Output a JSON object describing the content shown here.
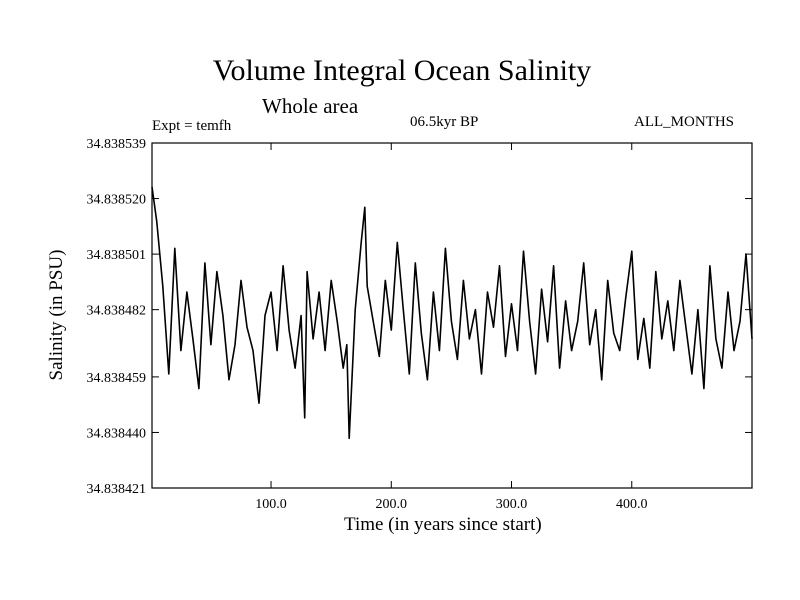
{
  "header": {
    "title": "Volume Integral Ocean Salinity",
    "subtitle": "Whole area",
    "experiment": "Expt = temfh",
    "period": "06.5kyr BP",
    "months": "ALL_MONTHS"
  },
  "colors": {
    "line": "#000000",
    "background": "#ffffff"
  },
  "chart_data": {
    "type": "line",
    "title": "Volume Integral Ocean Salinity",
    "subtitle": "Whole area",
    "xlabel": "Time (in years since start)",
    "ylabel": "Salinity (in PSU)",
    "xlim": [
      1,
      500
    ],
    "ylim": [
      34.838421,
      34.838539
    ],
    "xticks": [
      100,
      200,
      300,
      400
    ],
    "xtick_labels": [
      "100.0",
      "200.0",
      "300.0",
      "400.0"
    ],
    "yticks": [
      34.838421,
      34.83844,
      34.838459,
      34.838482,
      34.838501,
      34.83852,
      34.838539
    ],
    "ytick_labels": [
      "34.838421",
      "34.838440",
      "34.838459",
      "34.838482",
      "34.838501",
      "34.838520",
      "34.838539"
    ],
    "grid": false,
    "series": [
      {
        "name": "Salinity",
        "x": [
          1,
          5,
          10,
          15,
          20,
          25,
          30,
          35,
          40,
          45,
          50,
          55,
          60,
          65,
          70,
          75,
          80,
          85,
          90,
          95,
          100,
          105,
          110,
          115,
          120,
          125,
          128,
          130,
          135,
          140,
          145,
          150,
          155,
          160,
          163,
          165,
          170,
          175,
          178,
          180,
          185,
          190,
          195,
          200,
          205,
          210,
          215,
          220,
          225,
          230,
          235,
          240,
          245,
          250,
          255,
          260,
          265,
          270,
          275,
          280,
          285,
          290,
          295,
          300,
          305,
          310,
          315,
          320,
          325,
          330,
          335,
          340,
          345,
          350,
          355,
          360,
          365,
          370,
          375,
          380,
          385,
          390,
          395,
          400,
          405,
          410,
          415,
          420,
          425,
          430,
          435,
          440,
          445,
          450,
          455,
          460,
          465,
          470,
          475,
          480,
          485,
          490,
          495,
          500
        ],
        "values": [
          34.838524,
          34.838512,
          34.83849,
          34.83846,
          34.838503,
          34.838468,
          34.838488,
          34.838472,
          34.838455,
          34.838498,
          34.83847,
          34.838495,
          34.83848,
          34.838458,
          34.83847,
          34.838492,
          34.838476,
          34.838468,
          34.83845,
          34.83848,
          34.838488,
          34.838468,
          34.838497,
          34.838475,
          34.838462,
          34.83848,
          34.838445,
          34.838495,
          34.838472,
          34.838488,
          34.838468,
          34.838492,
          34.838478,
          34.838462,
          34.83847,
          34.838438,
          34.838482,
          34.838505,
          34.838517,
          34.83849,
          34.838478,
          34.838466,
          34.838492,
          34.838475,
          34.838505,
          34.838482,
          34.83846,
          34.838498,
          34.838474,
          34.838458,
          34.838488,
          34.838468,
          34.838503,
          34.838478,
          34.838465,
          34.838492,
          34.838472,
          34.838482,
          34.83846,
          34.838488,
          34.838476,
          34.838497,
          34.838466,
          34.838484,
          34.838468,
          34.838502,
          34.838478,
          34.83846,
          34.838489,
          34.838471,
          34.838497,
          34.838462,
          34.838485,
          34.838468,
          34.838478,
          34.838498,
          34.83847,
          34.838482,
          34.838458,
          34.838492,
          34.838474,
          34.838468,
          34.838486,
          34.838502,
          34.838465,
          34.838479,
          34.838462,
          34.838495,
          34.838472,
          34.838485,
          34.838468,
          34.838492,
          34.838476,
          34.83846,
          34.838482,
          34.838455,
          34.838497,
          34.838472,
          34.838462,
          34.838488,
          34.838468,
          34.838478,
          34.838501,
          34.838472
        ]
      }
    ]
  }
}
